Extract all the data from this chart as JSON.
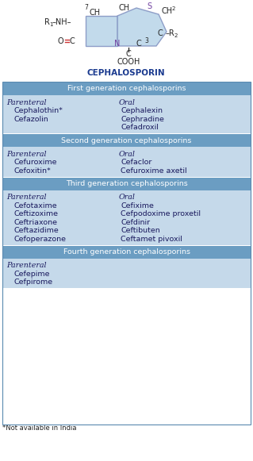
{
  "title": "CEPHALOSPORIN",
  "bg_color": "#ffffff",
  "header_bg": "#6b9dc2",
  "header_text_color": "#ffffff",
  "cell_bg": "#c5d9ea",
  "cell_text_color": "#1a1a5e",
  "outer_border_color": "#5a8ab0",
  "footnote": "*Not available in India",
  "sections": [
    {
      "header": "First generation cephalosporins",
      "parenteral_label": "Parenteral",
      "parenteral_drugs": [
        "Cephalothin*",
        "Cefazolin"
      ],
      "oral_label": "Oral",
      "oral_drugs": [
        "Cephalexin",
        "Cephradine",
        "Cefadroxil"
      ]
    },
    {
      "header": "Second generation cephalosporins",
      "parenteral_label": "Parenteral",
      "parenteral_drugs": [
        "Cefuroxime",
        "Cefoxitin*"
      ],
      "oral_label": "Oral",
      "oral_drugs": [
        "Cefaclor",
        "Cefuroxime axetil"
      ]
    },
    {
      "header": "Third generation cephalosporins",
      "parenteral_label": "Parenteral",
      "parenteral_drugs": [
        "Cefotaxime",
        "Ceftizoxime",
        "Ceftriaxone",
        "Ceftazidime",
        "Cefoperazone"
      ],
      "oral_label": "Oral",
      "oral_drugs": [
        "Cefixime",
        "Cefpodoxime proxetil",
        "Cefdinir",
        "Ceftibuten",
        "Ceftamet pivoxil"
      ]
    },
    {
      "header": "Fourth generation cephalosporins",
      "parenteral_label": "Parenteral",
      "parenteral_drugs": [
        "Cefepime",
        "Cefpirome"
      ],
      "oral_label": null,
      "oral_drugs": []
    }
  ],
  "struct": {
    "ring_fill": "#b8d4e8",
    "ring_edge": "#8090c0",
    "label_color": "#222222",
    "n_color": "#7040a0",
    "s_color": "#7040a0",
    "double_bond_color": "#cc3333"
  }
}
